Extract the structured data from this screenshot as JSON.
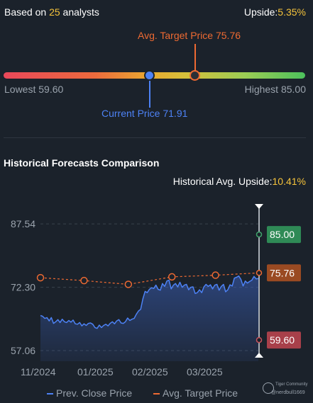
{
  "header": {
    "analysts_prefix": "Based on ",
    "analysts_count": "25",
    "analysts_suffix": " analysts",
    "upside_label": "Upside:",
    "upside_value": "5.35%"
  },
  "range": {
    "target_label": "Avg. Target Price 75.76",
    "lowest_label": "Lowest 59.60",
    "highest_label": "Highest 85.00",
    "current_label": "Current Price 71.91",
    "lowest": 59.6,
    "highest": 85.0,
    "current": 71.91,
    "target": 75.76
  },
  "history": {
    "title": "Historical Forecasts Comparison",
    "upside_label": "Historical Avg. Upside:",
    "upside_value": "10.41%"
  },
  "legend": {
    "prev_close": "Prev. Close Price",
    "avg_target": "Avg. Target Price"
  },
  "watermark": {
    "brand": "Tiger Community",
    "user": "@nerdbull1669"
  },
  "colors": {
    "background": "#1b222b",
    "accent_yellow": "#f5c33b",
    "target_orange": "#ee6a32",
    "price_blue": "#4d82f5",
    "high_green": "#2f8a56",
    "low_red": "#a8404a"
  },
  "chart_data": {
    "type": "line",
    "ylim": [
      54.5,
      92
    ],
    "y_ticks": [
      "87.54",
      "72.30",
      "57.06"
    ],
    "x_ticks": [
      "11/2024",
      "01/2025",
      "02/2025",
      "03/2025"
    ],
    "end_labels": {
      "high": "85.00",
      "target": "75.76",
      "low": "59.60"
    },
    "grid": true,
    "series": [
      {
        "name": "Prev. Close Price",
        "style": "area",
        "color": "#4d82f5",
        "x": [
          0,
          3,
          6,
          9,
          12,
          15,
          18,
          21,
          24,
          27,
          30,
          33,
          36,
          39,
          42,
          45,
          48,
          51,
          54,
          57,
          60,
          63,
          66,
          69,
          72,
          75,
          78,
          81,
          84,
          87,
          90,
          93,
          96,
          99,
          102,
          105,
          108,
          111,
          114,
          117,
          120,
          123,
          126,
          129,
          132,
          135,
          138,
          141,
          144,
          147,
          150,
          153,
          156,
          159,
          162,
          165,
          168,
          171,
          174,
          177,
          180,
          183,
          186,
          189,
          192,
          195,
          198,
          201,
          204,
          207,
          210,
          213,
          216,
          219,
          222,
          225,
          228,
          231,
          234,
          237,
          240,
          243,
          246,
          249,
          252,
          255,
          258,
          261,
          264,
          267,
          270,
          273,
          276,
          279,
          282,
          285,
          288,
          291,
          294,
          297,
          300
        ],
        "values": [
          65.5,
          65.3,
          64.8,
          65.0,
          64.2,
          65.0,
          63.6,
          64.0,
          64.5,
          63.8,
          64.6,
          64.0,
          63.8,
          64.3,
          63.9,
          64.4,
          63.5,
          63.4,
          63.8,
          63.0,
          63.5,
          63.1,
          63.6,
          63.7,
          63.4,
          62.6,
          62.4,
          63.2,
          62.6,
          63.1,
          63.4,
          63.0,
          63.6,
          64.0,
          63.5,
          64.2,
          64.5,
          63.7,
          63.6,
          64.0,
          64.9,
          64.3,
          64.6,
          64.8,
          65.8,
          66.6,
          67.0,
          69.5,
          71.3,
          71.0,
          71.8,
          72.2,
          72.0,
          72.8,
          71.8,
          71.6,
          73.2,
          72.5,
          73.8,
          74.0,
          71.9,
          72.8,
          73.2,
          72.4,
          73.5,
          72.3,
          72.8,
          73.0,
          71.7,
          72.3,
          72.4,
          70.8,
          71.0,
          71.7,
          71.0,
          72.4,
          73.0,
          72.5,
          72.9,
          71.9,
          72.8,
          73.0,
          71.6,
          72.5,
          73.0,
          71.2,
          71.7,
          72.9,
          72.6,
          74.5,
          74.7,
          75.0,
          74.2,
          72.6,
          73.8,
          73.3,
          73.7,
          74.0,
          74.9,
          74.3,
          74.4
        ]
      },
      {
        "name": "Avg. Target Price",
        "style": "dashed-markers",
        "color": "#ee6a32",
        "x": [
          0,
          60,
          121,
          181,
          241,
          300
        ],
        "values": [
          74.6,
          73.9,
          73.0,
          74.8,
          75.2,
          75.76
        ]
      }
    ]
  }
}
